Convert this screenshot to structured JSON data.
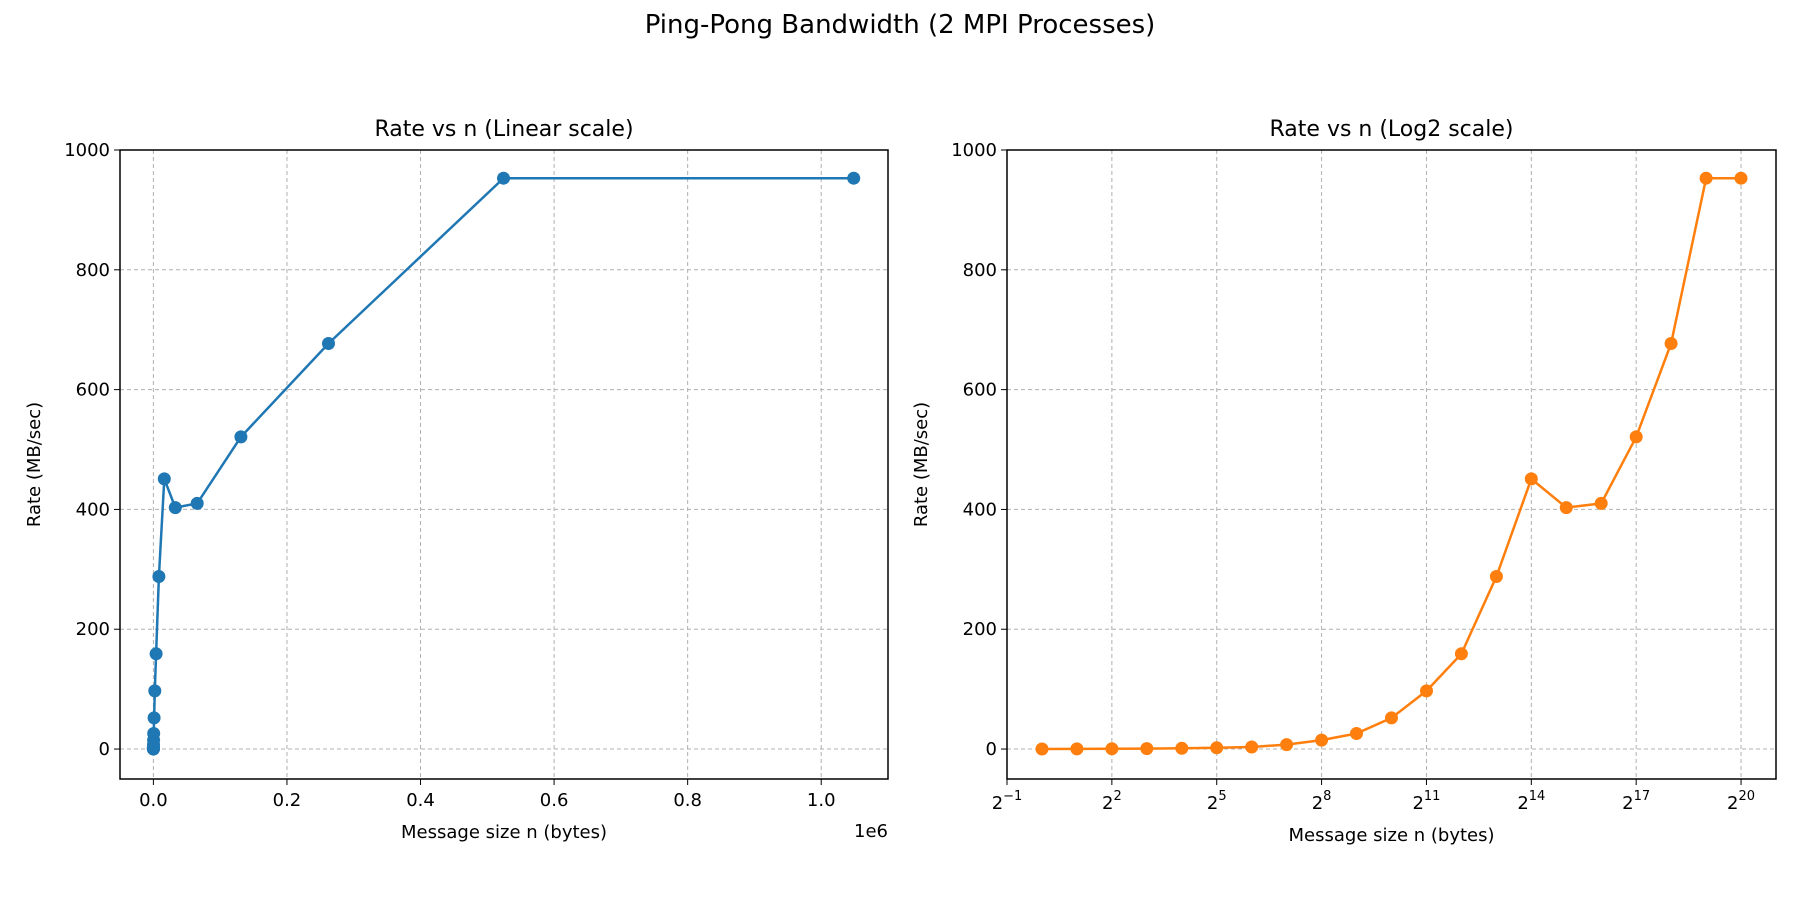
{
  "figure": {
    "suptitle": "Ping-Pong Bandwidth (2 MPI Processes)"
  },
  "chart_data": [
    {
      "type": "line",
      "title": "Rate vs n (Linear scale)",
      "xlabel": "Message size n (bytes)",
      "ylabel": "Rate (MB/sec)",
      "x_scale": "linear",
      "x_offset_label": "1e6",
      "xlim": [
        -50000,
        1100000
      ],
      "ylim": [
        -50,
        1000
      ],
      "xticks": [
        0,
        200000,
        400000,
        600000,
        800000,
        1000000
      ],
      "xtick_labels": [
        "0.0",
        "0.2",
        "0.4",
        "0.6",
        "0.8",
        "1.0"
      ],
      "yticks": [
        0,
        200,
        400,
        600,
        800,
        1000
      ],
      "ytick_labels": [
        "0",
        "200",
        "400",
        "600",
        "800",
        "1000"
      ],
      "grid": true,
      "color": "#1f77b4",
      "marker": "circle",
      "series": [
        {
          "x": [
            1,
            2,
            4,
            8,
            16,
            32,
            64,
            128,
            256,
            512,
            1024,
            2048,
            4096,
            8192,
            16384,
            32768,
            65536,
            131072,
            262144,
            524288,
            1048576
          ],
          "y": [
            0.1,
            0.2,
            0.4,
            0.7,
            1.2,
            2.0,
            3.5,
            7.5,
            15,
            26,
            52,
            97,
            159,
            288,
            451,
            403,
            410,
            521,
            677,
            953,
            953
          ]
        }
      ]
    },
    {
      "type": "line",
      "title": "Rate vs n (Log2 scale)",
      "xlabel": "Message size n (bytes)",
      "ylabel": "Rate (MB/sec)",
      "x_scale": "log2",
      "xlim_exp": [
        -1,
        21
      ],
      "ylim": [
        -50,
        1000
      ],
      "xtick_exponents": [
        -1,
        2,
        5,
        8,
        11,
        14,
        17,
        20
      ],
      "yticks": [
        0,
        200,
        400,
        600,
        800,
        1000
      ],
      "ytick_labels": [
        "0",
        "200",
        "400",
        "600",
        "800",
        "1000"
      ],
      "grid": true,
      "color": "#ff7f0e",
      "marker": "circle",
      "series": [
        {
          "x": [
            1,
            2,
            4,
            8,
            16,
            32,
            64,
            128,
            256,
            512,
            1024,
            2048,
            4096,
            8192,
            16384,
            32768,
            65536,
            131072,
            262144,
            524288,
            1048576
          ],
          "y": [
            0.1,
            0.2,
            0.4,
            0.7,
            1.2,
            2.0,
            3.5,
            7.5,
            15,
            26,
            52,
            97,
            159,
            288,
            451,
            403,
            410,
            521,
            677,
            953,
            953
          ]
        }
      ]
    }
  ]
}
